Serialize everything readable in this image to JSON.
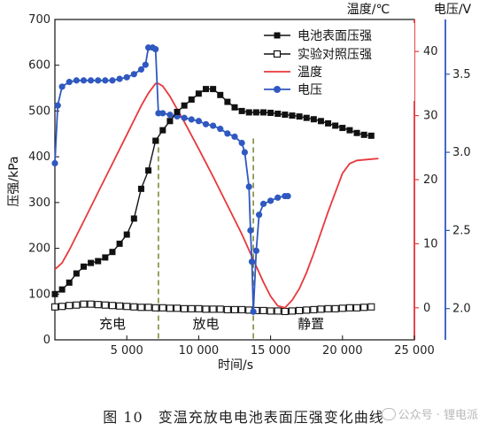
{
  "caption": "图 10　变温充放电电池表面压强变化曲线",
  "watermark": "公众号 · 锂电派",
  "watermark_icon": "wechat-icon",
  "chart_data": {
    "type": "line",
    "xlabel": "时间/s",
    "ylabel_left": "压强/kPa",
    "ylabel_right_temp": "温度/℃",
    "ylabel_right_volt": "电压/V",
    "x_ticks": [
      {
        "v": 5000,
        "label": "5 000"
      },
      {
        "v": 10000,
        "label": "10 000"
      },
      {
        "v": 15000,
        "label": "15 000"
      },
      {
        "v": 20000,
        "label": "20 000"
      },
      {
        "v": 25000,
        "label": "25 000"
      }
    ],
    "y_ticks_left": [
      "0",
      "100",
      "200",
      "300",
      "400",
      "500",
      "600",
      "700"
    ],
    "y_ticks_temp": [
      "0",
      "10",
      "20",
      "30",
      "40"
    ],
    "y_ticks_volt": [
      "2.0",
      "2.5",
      "3.0",
      "3.5"
    ],
    "xlim": [
      0,
      25000
    ],
    "ylim_left": [
      0,
      700
    ],
    "ylim_temp": [
      -5,
      45
    ],
    "ylim_volt": [
      1.8,
      3.85
    ],
    "colors": {
      "pressure": "#111111",
      "control": "#111111",
      "temp": "#e8383d",
      "volt": "#2f58c0",
      "phase_line": "#6b7a1e",
      "right_axis_temp": "#e8383d",
      "right_axis_volt": "#2f58c0"
    },
    "phases": [
      {
        "label": "充电",
        "x": 4000
      },
      {
        "label": "放电",
        "x": 10500
      },
      {
        "label": "静置",
        "x": 17800
      }
    ],
    "phase_dividers": [
      7200,
      13800
    ],
    "series": [
      {
        "name": "电池表面压强",
        "axis": "left",
        "marker": "filled-square",
        "x": [
          0,
          500,
          1000,
          1500,
          2000,
          2500,
          3000,
          3500,
          4000,
          4500,
          5000,
          5500,
          6000,
          6500,
          7000,
          7500,
          8000,
          8500,
          9000,
          9500,
          10000,
          10500,
          11000,
          11500,
          12000,
          12500,
          13000,
          13500,
          14000,
          14500,
          15000,
          15500,
          16000,
          16500,
          17000,
          17500,
          18000,
          18500,
          19000,
          19500,
          20000,
          20500,
          21000,
          21500,
          22000
        ],
        "y": [
          100,
          110,
          125,
          145,
          160,
          168,
          172,
          180,
          192,
          210,
          230,
          265,
          330,
          370,
          435,
          458,
          478,
          498,
          512,
          525,
          538,
          548,
          548,
          535,
          520,
          508,
          500,
          497,
          497,
          497,
          496,
          494,
          492,
          490,
          488,
          485,
          482,
          478,
          473,
          468,
          463,
          458,
          452,
          448,
          446
        ]
      },
      {
        "name": "实验对照压强",
        "axis": "left",
        "marker": "open-square",
        "x": [
          0,
          500,
          1000,
          1500,
          2000,
          2500,
          3000,
          3500,
          4000,
          4500,
          5000,
          5500,
          6000,
          6500,
          7000,
          7500,
          8000,
          8500,
          9000,
          9500,
          10000,
          10500,
          11000,
          11500,
          12000,
          12500,
          13000,
          13500,
          14000,
          14500,
          15000,
          15500,
          16000,
          16500,
          17000,
          17500,
          18000,
          18500,
          19000,
          19500,
          20000,
          20500,
          21000,
          21500,
          22000
        ],
        "y": [
          72,
          73,
          75,
          76,
          78,
          78,
          77,
          76,
          75,
          74,
          73,
          72,
          71,
          71,
          70,
          70,
          69,
          69,
          68,
          68,
          68,
          67,
          67,
          67,
          66,
          66,
          66,
          65,
          64,
          64,
          63,
          63,
          62,
          63,
          64,
          65,
          66,
          67,
          68,
          68,
          69,
          70,
          70,
          71,
          72
        ]
      },
      {
        "name": "温度",
        "axis": "temp",
        "marker": "none",
        "x": [
          0,
          500,
          1000,
          2000,
          3000,
          4000,
          5000,
          6000,
          6500,
          7000,
          7200,
          7500,
          8000,
          9000,
          10000,
          11000,
          12000,
          13000,
          13800,
          14500,
          15000,
          15500,
          16000,
          16500,
          17000,
          17500,
          18000,
          19000,
          20000,
          20500,
          21000,
          22000,
          22500
        ],
        "y": [
          6,
          7,
          9,
          13.5,
          18,
          22.5,
          27,
          31.5,
          33.5,
          35,
          35,
          34.6,
          33,
          29,
          24.8,
          20.5,
          16,
          11.5,
          7.5,
          4,
          1.8,
          0.3,
          0,
          1.2,
          3,
          5.5,
          8.5,
          15,
          21,
          22.5,
          23,
          23.2,
          23.3
        ]
      },
      {
        "name": "电压",
        "axis": "volt",
        "marker": "filled-circle",
        "x": [
          0,
          200,
          500,
          1000,
          1500,
          2000,
          2500,
          3000,
          3500,
          4000,
          4500,
          5000,
          5500,
          6000,
          6300,
          6500,
          6800,
          7000,
          7200,
          7500,
          8000,
          8500,
          9000,
          9500,
          10000,
          10500,
          11000,
          11500,
          12000,
          12500,
          13000,
          13200,
          13500,
          13600,
          13700,
          13800,
          14000,
          14200,
          14500,
          15000,
          15500,
          16000,
          16200
        ],
        "y": [
          2.93,
          3.3,
          3.42,
          3.45,
          3.46,
          3.46,
          3.46,
          3.46,
          3.46,
          3.46,
          3.47,
          3.48,
          3.5,
          3.53,
          3.56,
          3.67,
          3.67,
          3.66,
          3.25,
          3.25,
          3.24,
          3.23,
          3.22,
          3.21,
          3.2,
          3.18,
          3.17,
          3.15,
          3.12,
          3.1,
          3.06,
          3.0,
          2.78,
          2.5,
          2.3,
          1.98,
          2.37,
          2.6,
          2.67,
          2.69,
          2.71,
          2.72,
          2.72
        ]
      }
    ]
  }
}
